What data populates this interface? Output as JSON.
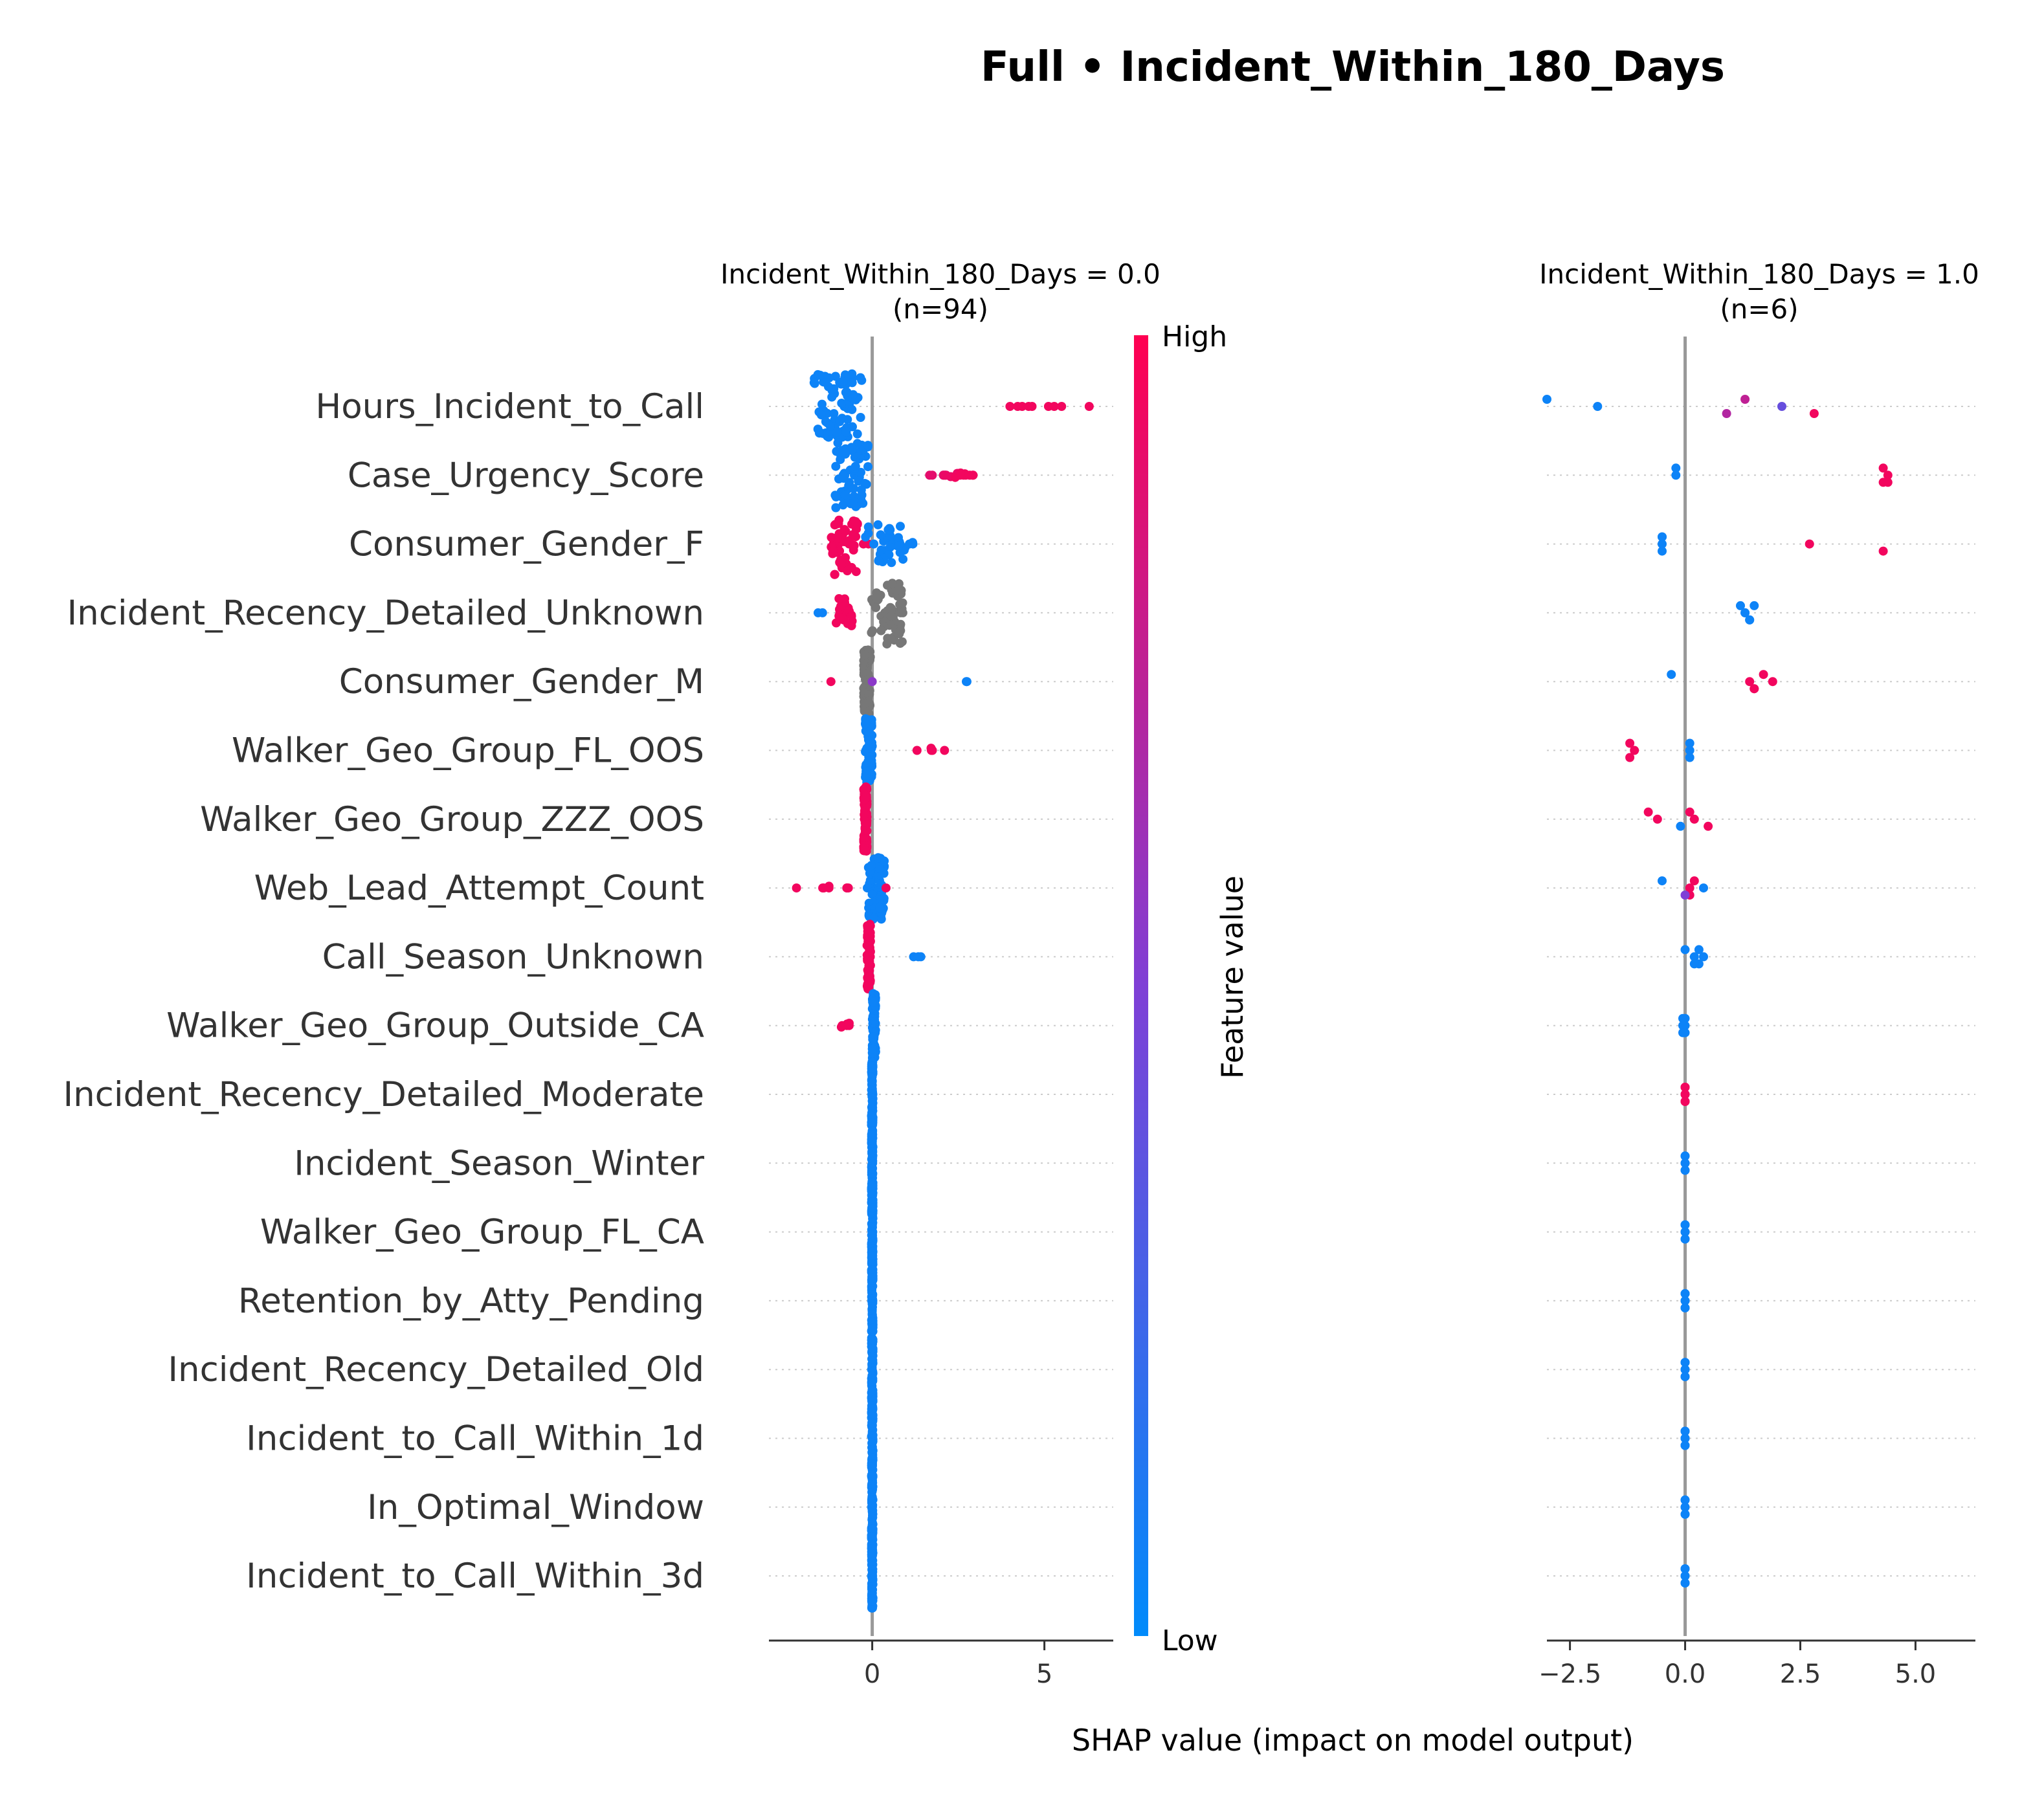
{
  "title": "Full • Incident_Within_180_Days",
  "xlabel": "SHAP value (impact on model output)",
  "colorbar": {
    "high": "High",
    "low": "Low",
    "label": "Feature value",
    "color_high": "#ff0051",
    "color_mid": "#9d13c4",
    "color_low": "#008bfb"
  },
  "colors": {
    "missing": "#777777",
    "zero_line": "#999999",
    "grid": "#cccccc"
  },
  "chart_data": {
    "type": "scatter",
    "features": [
      "Hours_Incident_to_Call",
      "Case_Urgency_Score",
      "Consumer_Gender_F",
      "Incident_Recency_Detailed_Unknown",
      "Consumer_Gender_M",
      "Walker_Geo_Group_FL_OOS",
      "Walker_Geo_Group_ZZZ_OOS",
      "Web_Lead_Attempt_Count",
      "Call_Season_Unknown",
      "Walker_Geo_Group_Outside_CA",
      "Incident_Recency_Detailed_Moderate",
      "Incident_Season_Winter",
      "Walker_Geo_Group_FL_CA",
      "Retention_by_Atty_Pending",
      "Incident_Recency_Detailed_Old",
      "Incident_to_Call_Within_1d",
      "In_Optimal_Window",
      "Incident_to_Call_Within_3d"
    ],
    "panels": [
      {
        "title_line1": "Incident_Within_180_Days = 0.0",
        "title_line2": "(n=94)",
        "xlim": [
          -3,
          7
        ],
        "xticks": [
          0,
          5
        ],
        "xtick_labels": [
          "0",
          "5"
        ],
        "points": [
          {
            "feature": 0,
            "groups": [
              [
                -1.0,
                0.05,
                80,
                0.7
              ],
              [
                4.0,
                0.95,
                1,
                0
              ],
              [
                4.3,
                0.95,
                2,
                0.1
              ],
              [
                4.6,
                0.95,
                2,
                0.1
              ],
              [
                5.2,
                0.95,
                2,
                0.1
              ],
              [
                5.5,
                0.95,
                1,
                0
              ],
              [
                6.3,
                0.95,
                1,
                0
              ]
            ]
          },
          {
            "feature": 1,
            "groups": [
              [
                -0.6,
                0.05,
                72,
                0.5
              ],
              [
                1.6,
                0.9,
                2,
                0.15
              ],
              [
                2.0,
                0.9,
                3,
                0.2
              ],
              [
                2.3,
                0.92,
                6,
                0.2
              ],
              [
                2.6,
                0.95,
                6,
                0.2
              ],
              [
                2.9,
                0.95,
                3,
                0.1
              ]
            ]
          },
          {
            "feature": 2,
            "groups": [
              [
                -0.8,
                0.95,
                48,
                0.4
              ],
              [
                -0.2,
                0.95,
                2,
                0.1
              ],
              [
                0.4,
                0.05,
                34,
                0.6
              ],
              [
                1.0,
                0.05,
                6,
                0.3
              ]
            ]
          },
          {
            "feature": 3,
            "groups": [
              [
                -1.6,
                0.05,
                2,
                0.2
              ],
              [
                -0.8,
                0.95,
                22,
                0.25
              ],
              [
                0.4,
                null,
                55,
                0.5
              ],
              [
                0.6,
                null,
                8,
                0.2
              ]
            ]
          },
          {
            "feature": 4,
            "groups": [
              [
                -1.2,
                0.95,
                1,
                0
              ],
              [
                -0.15,
                null,
                80,
                0.1
              ],
              [
                0.0,
                0.55,
                1,
                0
              ],
              [
                2.7,
                0.05,
                2,
                0.1
              ]
            ]
          },
          {
            "feature": 5,
            "groups": [
              [
                -0.1,
                0.05,
                85,
                0.1
              ],
              [
                1.3,
                0.95,
                1,
                0
              ],
              [
                1.7,
                0.95,
                4,
                0.1
              ],
              [
                2.1,
                0.95,
                1,
                0
              ]
            ]
          },
          {
            "feature": 6,
            "groups": [
              [
                -0.2,
                0.95,
                90,
                0.05
              ]
            ]
          },
          {
            "feature": 7,
            "groups": [
              [
                -2.2,
                0.95,
                1,
                0
              ],
              [
                -1.3,
                0.95,
                4,
                0.15
              ],
              [
                -0.6,
                0.95,
                3,
                0.15
              ],
              [
                -0.1,
                0.95,
                3,
                0.1
              ],
              [
                0.1,
                0.05,
                75,
                0.25
              ],
              [
                0.4,
                0.95,
                1,
                0
              ]
            ]
          },
          {
            "feature": 8,
            "groups": [
              [
                -0.1,
                0.95,
                88,
                0.05
              ],
              [
                1.3,
                0.05,
                3,
                0.15
              ]
            ]
          },
          {
            "feature": 9,
            "groups": [
              [
                -0.8,
                0.95,
                6,
                0.2
              ],
              [
                0.05,
                0.05,
                86,
                0.05
              ]
            ]
          },
          {
            "feature": 10,
            "groups": [
              [
                0.0,
                0.05,
                94,
                0.02
              ]
            ]
          },
          {
            "feature": 11,
            "groups": [
              [
                0.0,
                0.05,
                94,
                0.02
              ]
            ]
          },
          {
            "feature": 12,
            "groups": [
              [
                0.0,
                0.05,
                94,
                0.02
              ]
            ]
          },
          {
            "feature": 13,
            "groups": [
              [
                0.0,
                0.05,
                94,
                0.02
              ]
            ]
          },
          {
            "feature": 14,
            "groups": [
              [
                0.0,
                0.95,
                1,
                0
              ],
              [
                0.0,
                0.05,
                93,
                0.02
              ]
            ]
          },
          {
            "feature": 15,
            "groups": [
              [
                0.0,
                0.05,
                94,
                0.02
              ]
            ]
          },
          {
            "feature": 16,
            "groups": [
              [
                0.0,
                0.05,
                94,
                0.02
              ]
            ]
          },
          {
            "feature": 17,
            "groups": [
              [
                0.0,
                0.05,
                94,
                0.02
              ]
            ]
          }
        ]
      },
      {
        "title_line1": "Incident_Within_180_Days = 1.0",
        "title_line2": "(n=6)",
        "xlim": [
          -3,
          6.3
        ],
        "xticks": [
          -2.5,
          0,
          2.5,
          5
        ],
        "xtick_labels": [
          "−2.5",
          "0.0",
          "2.5",
          "5.0"
        ],
        "points": [
          {
            "feature": 0,
            "values": [
              -3.0,
              -1.9,
              0.9,
              1.3,
              2.1,
              2.8
            ],
            "colors": [
              0.05,
              0.05,
              0.7,
              0.75,
              0.4,
              0.95
            ]
          },
          {
            "feature": 1,
            "values": [
              -0.2,
              -0.2,
              4.3,
              4.3,
              4.4,
              4.4
            ],
            "colors": [
              0.05,
              0.05,
              0.95,
              0.95,
              0.95,
              0.95
            ]
          },
          {
            "feature": 2,
            "values": [
              -0.5,
              -0.5,
              -0.5,
              -0.5,
              2.7,
              4.3
            ],
            "colors": [
              0.05,
              0.05,
              0.05,
              0.05,
              0.95,
              0.95
            ]
          },
          {
            "feature": 3,
            "values": [
              1.2,
              1.3,
              1.4,
              1.5,
              1.3,
              1.4
            ],
            "colors": [
              0.05,
              0.05,
              0.05,
              0.05,
              0.05,
              0.05
            ]
          },
          {
            "feature": 4,
            "values": [
              -0.3,
              1.4,
              1.5,
              1.7,
              1.9,
              1.5
            ],
            "colors": [
              0.05,
              0.95,
              0.95,
              0.95,
              0.95,
              0.95
            ]
          },
          {
            "feature": 5,
            "values": [
              -1.2,
              -1.1,
              -1.2,
              0.1,
              0.1,
              0.1
            ],
            "colors": [
              0.95,
              0.95,
              0.95,
              0.05,
              0.05,
              0.05
            ]
          },
          {
            "feature": 6,
            "values": [
              -0.8,
              -0.6,
              -0.1,
              0.1,
              0.2,
              0.5
            ],
            "colors": [
              0.95,
              0.95,
              0.05,
              0.95,
              0.95,
              0.95
            ]
          },
          {
            "feature": 7,
            "values": [
              -0.5,
              0.1,
              0.1,
              0.2,
              0.4,
              0.0
            ],
            "colors": [
              0.05,
              0.95,
              0.95,
              0.95,
              0.05,
              0.5
            ]
          },
          {
            "feature": 8,
            "values": [
              0.0,
              0.2,
              0.3,
              0.3,
              0.4,
              0.2
            ],
            "colors": [
              0.05,
              0.05,
              0.05,
              0.05,
              0.05,
              0.05
            ]
          },
          {
            "feature": 9,
            "values": [
              -0.05,
              0.0,
              -0.05,
              0.0,
              -0.05,
              0.0
            ],
            "colors": [
              0.05,
              0.05,
              0.05,
              0.05,
              0.05,
              0.05
            ]
          },
          {
            "feature": 10,
            "values": [
              0.0,
              0.0,
              0.0,
              0.0,
              0.0,
              0.0
            ],
            "colors": [
              0.95,
              0.95,
              0.95,
              0.95,
              0.95,
              0.95
            ]
          },
          {
            "feature": 11,
            "values": [
              0.0,
              0.0,
              0.0,
              0.0,
              0.0,
              0.0
            ],
            "colors": [
              0.05,
              0.05,
              0.05,
              0.05,
              0.05,
              0.05
            ]
          },
          {
            "feature": 12,
            "values": [
              0.0,
              0.0,
              0.0,
              0.0,
              0.0,
              0.0
            ],
            "colors": [
              0.05,
              0.05,
              0.05,
              0.05,
              0.05,
              0.05
            ]
          },
          {
            "feature": 13,
            "values": [
              0.0,
              0.0,
              0.0,
              0.0,
              0.0,
              0.0
            ],
            "colors": [
              0.05,
              0.05,
              0.05,
              0.05,
              0.05,
              0.05
            ]
          },
          {
            "feature": 14,
            "values": [
              0.0,
              0.0,
              0.0,
              0.0,
              0.0,
              0.0
            ],
            "colors": [
              0.05,
              0.05,
              0.05,
              0.05,
              0.05,
              0.05
            ]
          },
          {
            "feature": 15,
            "values": [
              0.0,
              0.0,
              0.0,
              0.0,
              0.0,
              0.0
            ],
            "colors": [
              0.05,
              0.05,
              0.05,
              0.05,
              0.05,
              0.05
            ]
          },
          {
            "feature": 16,
            "values": [
              0.0,
              0.0,
              0.0,
              0.0,
              0.0,
              0.0
            ],
            "colors": [
              0.05,
              0.05,
              0.05,
              0.05,
              0.05,
              0.05
            ]
          },
          {
            "feature": 17,
            "values": [
              0.0,
              0.0,
              0.0,
              0.0,
              0.0,
              0.0
            ],
            "colors": [
              0.05,
              0.05,
              0.05,
              0.05,
              0.05,
              0.05
            ]
          }
        ]
      }
    ]
  }
}
